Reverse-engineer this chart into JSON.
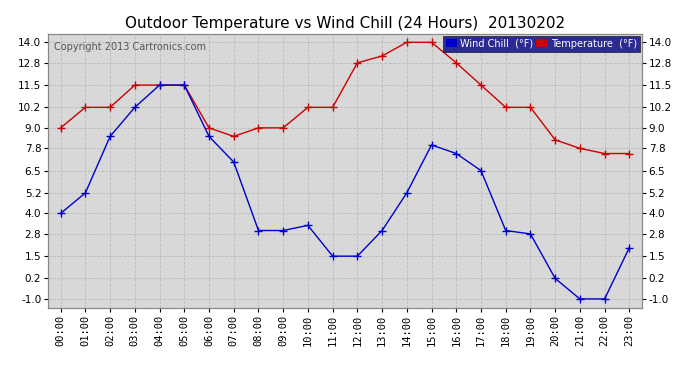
{
  "title": "Outdoor Temperature vs Wind Chill (24 Hours)  20130202",
  "copyright": "Copyright 2013 Cartronics.com",
  "hours": [
    "00:00",
    "01:00",
    "02:00",
    "03:00",
    "04:00",
    "05:00",
    "06:00",
    "07:00",
    "08:00",
    "09:00",
    "10:00",
    "11:00",
    "12:00",
    "13:00",
    "14:00",
    "15:00",
    "16:00",
    "17:00",
    "18:00",
    "19:00",
    "20:00",
    "21:00",
    "22:00",
    "23:00"
  ],
  "temperature": [
    9.0,
    10.2,
    10.2,
    11.5,
    11.5,
    11.5,
    9.0,
    8.5,
    9.0,
    9.0,
    10.2,
    10.2,
    12.8,
    13.2,
    14.0,
    14.0,
    12.8,
    11.5,
    10.2,
    10.2,
    8.3,
    7.8,
    7.5,
    7.5
  ],
  "wind_chill": [
    4.0,
    5.2,
    8.5,
    10.2,
    11.5,
    11.5,
    8.5,
    7.0,
    3.0,
    3.0,
    3.3,
    1.5,
    1.5,
    3.0,
    5.2,
    8.0,
    7.5,
    6.5,
    3.0,
    2.8,
    0.2,
    -1.0,
    -1.0,
    2.0
  ],
  "temp_color": "#cc0000",
  "wind_color": "#0000cc",
  "bg_color": "#ffffff",
  "plot_bg": "#d8d8d8",
  "grid_color": "#bbbbbb",
  "ylim_min": -1.0,
  "ylim_max": 14.0,
  "yticks": [
    -1.0,
    0.2,
    1.5,
    2.8,
    4.0,
    5.2,
    6.5,
    7.8,
    9.0,
    10.2,
    11.5,
    12.8,
    14.0
  ],
  "legend_wind_label": "Wind Chill  (°F)",
  "legend_temp_label": "Temperature  (°F)",
  "title_fontsize": 11,
  "axis_label_fontsize": 7.5,
  "copyright_fontsize": 7
}
